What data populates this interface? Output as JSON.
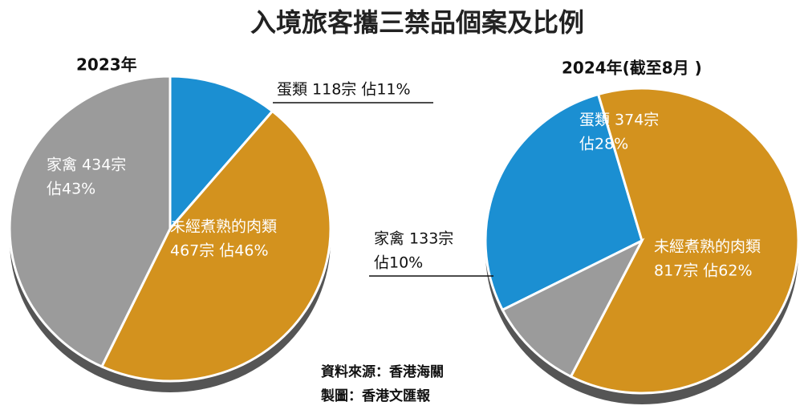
{
  "title": "入境旅客攜三禁品個案及比例",
  "chart_data": [
    {
      "type": "pie",
      "subtitle": "2023年",
      "values": [
        11,
        46,
        43
      ],
      "counts": [
        118,
        467,
        434
      ],
      "value_labels": [
        [
          "蛋類 118宗 佔11%"
        ],
        [
          "未經煮熟的肉類",
          "467宗 佔46%"
        ],
        [
          "家禽 434宗",
          "佔43%"
        ]
      ],
      "colors": [
        "#1b8fd2",
        "#d3921e",
        "#9b9b9b"
      ]
    },
    {
      "type": "pie",
      "subtitle": "2024年(截至8月 )",
      "values": [
        28,
        62,
        10
      ],
      "counts": [
        374,
        817,
        133
      ],
      "value_labels": [
        [
          "蛋類 374宗",
          "佔28%"
        ],
        [
          "未經煮熟的肉類",
          "817宗 佔62%"
        ],
        [
          "家禽 133宗",
          "佔10%"
        ]
      ],
      "colors": [
        "#1b8fd2",
        "#d3921e",
        "#9b9b9b"
      ]
    }
  ],
  "source": "資料來源：香港海關",
  "credit": "製圖：香港文匯報"
}
